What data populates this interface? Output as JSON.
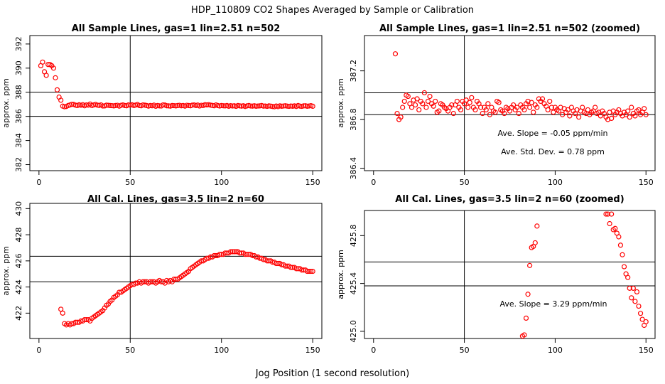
{
  "figure": {
    "title": "HDP_110809  CO2 Shapes Averaged by Sample or Calibration",
    "xlabel": "Jog Position (1 second resolution)"
  },
  "chart_data": [
    {
      "type": "scatter",
      "title": "All Sample Lines, gas=1 lin=2.51 n=502",
      "ylabel": "approx. ppm",
      "color": "#ff0000",
      "xlim": [
        -5,
        155
      ],
      "ylim": [
        381.5,
        392.7
      ],
      "xticks": [
        0,
        50,
        100,
        150
      ],
      "yticks": [
        382,
        384,
        386,
        388,
        390,
        392
      ],
      "hlines": [
        386,
        388
      ],
      "vlines": [
        50
      ],
      "annotations": [],
      "x": [
        1,
        2,
        3,
        4,
        5,
        6,
        7,
        8,
        9,
        10,
        11,
        12,
        13,
        14,
        15,
        16,
        17,
        18,
        19,
        20,
        21,
        22,
        23,
        24,
        25,
        26,
        27,
        28,
        29,
        30,
        31,
        32,
        33,
        34,
        35,
        36,
        37,
        38,
        39,
        40,
        41,
        42,
        43,
        44,
        45,
        46,
        47,
        48,
        49,
        50,
        51,
        52,
        53,
        54,
        55,
        56,
        57,
        58,
        59,
        60,
        61,
        62,
        63,
        64,
        65,
        66,
        67,
        68,
        69,
        70,
        71,
        72,
        73,
        74,
        75,
        76,
        77,
        78,
        79,
        80,
        81,
        82,
        83,
        84,
        85,
        86,
        87,
        88,
        89,
        90,
        91,
        92,
        93,
        94,
        95,
        96,
        97,
        98,
        99,
        100,
        101,
        102,
        103,
        104,
        105,
        106,
        107,
        108,
        109,
        110,
        111,
        112,
        113,
        114,
        115,
        116,
        117,
        118,
        119,
        120,
        121,
        122,
        123,
        124,
        125,
        126,
        127,
        128,
        129,
        130,
        131,
        132,
        133,
        134,
        135,
        136,
        137,
        138,
        139,
        140,
        141,
        142,
        143,
        144,
        145,
        146,
        147,
        148,
        149,
        150
      ],
      "values": [
        390.2,
        390.5,
        389.7,
        389.4,
        390.3,
        390.3,
        390.2,
        390.0,
        389.2,
        388.2,
        387.6,
        387.34,
        386.85,
        386.8,
        386.82,
        386.9,
        386.95,
        387.0,
        386.99,
        386.93,
        386.9,
        386.96,
        386.92,
        386.97,
        386.88,
        386.95,
        386.93,
        387.02,
        386.9,
        386.95,
        386.99,
        386.93,
        386.91,
        386.95,
        386.86,
        386.87,
        386.93,
        386.92,
        386.9,
        386.89,
        386.87,
        386.9,
        386.92,
        386.85,
        386.92,
        386.95,
        386.9,
        386.88,
        386.95,
        386.93,
        386.96,
        386.9,
        386.94,
        386.98,
        386.9,
        386.88,
        386.95,
        386.93,
        386.9,
        386.85,
        386.9,
        386.88,
        386.93,
        386.84,
        386.9,
        386.87,
        386.86,
        386.95,
        386.94,
        386.88,
        386.87,
        386.85,
        386.9,
        386.89,
        386.87,
        386.9,
        386.92,
        386.88,
        386.9,
        386.85,
        386.92,
        386.9,
        386.88,
        386.93,
        386.95,
        386.9,
        386.94,
        386.86,
        386.92,
        386.9,
        386.97,
        386.95,
        386.97,
        386.93,
        386.91,
        386.88,
        386.95,
        386.9,
        386.86,
        386.9,
        386.88,
        386.87,
        386.9,
        386.84,
        386.89,
        386.86,
        386.88,
        386.83,
        386.9,
        386.87,
        386.85,
        386.88,
        386.82,
        386.87,
        386.9,
        386.86,
        386.85,
        386.88,
        386.84,
        386.86,
        386.87,
        386.9,
        386.85,
        386.86,
        386.83,
        386.87,
        386.85,
        386.82,
        386.8,
        386.86,
        386.81,
        386.87,
        386.84,
        386.86,
        386.88,
        386.85,
        386.83,
        386.86,
        386.84,
        386.87,
        386.82,
        386.9,
        386.85,
        386.83,
        386.87,
        386.88,
        386.84,
        386.86,
        386.89,
        386.84
      ]
    },
    {
      "type": "scatter",
      "title": "All Sample Lines, gas=1 lin=2.51 n=502 (zoomed)",
      "ylabel": "approx. ppm",
      "color": "#ff0000",
      "xlim": [
        -5,
        155
      ],
      "ylim": [
        386.38,
        387.49
      ],
      "xticks": [
        0,
        50,
        100,
        150
      ],
      "yticks": [
        386.4,
        386.8,
        387.2
      ],
      "hlines": [
        386.84,
        387.02
      ],
      "vlines": [
        50
      ],
      "annotations": [
        "Ave. Slope =  -0.05  ppm/min",
        "Ave. Std. Dev. =  0.78  ppm"
      ],
      "x": [
        12,
        13,
        14,
        15,
        16,
        17,
        18,
        19,
        20,
        21,
        22,
        23,
        24,
        25,
        26,
        27,
        28,
        29,
        30,
        31,
        32,
        33,
        34,
        35,
        36,
        37,
        38,
        39,
        40,
        41,
        42,
        43,
        44,
        45,
        46,
        47,
        48,
        49,
        50,
        51,
        52,
        53,
        54,
        55,
        56,
        57,
        58,
        59,
        60,
        61,
        62,
        63,
        64,
        65,
        66,
        67,
        68,
        69,
        70,
        71,
        72,
        73,
        74,
        75,
        76,
        77,
        78,
        79,
        80,
        81,
        82,
        83,
        84,
        85,
        86,
        87,
        88,
        89,
        90,
        91,
        92,
        93,
        94,
        95,
        96,
        97,
        98,
        99,
        100,
        101,
        102,
        103,
        104,
        105,
        106,
        107,
        108,
        109,
        110,
        111,
        112,
        113,
        114,
        115,
        116,
        117,
        118,
        119,
        120,
        121,
        122,
        123,
        124,
        125,
        126,
        127,
        128,
        129,
        130,
        131,
        132,
        133,
        134,
        135,
        136,
        137,
        138,
        139,
        140,
        141,
        142,
        143,
        144,
        145,
        146,
        147,
        148,
        149,
        150
      ],
      "values": [
        387.34,
        386.85,
        386.8,
        386.82,
        386.9,
        386.95,
        387.0,
        386.99,
        386.93,
        386.9,
        386.96,
        386.92,
        386.97,
        386.88,
        386.95,
        386.93,
        387.02,
        386.9,
        386.95,
        386.99,
        386.93,
        386.91,
        386.95,
        386.86,
        386.87,
        386.93,
        386.92,
        386.9,
        386.89,
        386.87,
        386.9,
        386.92,
        386.85,
        386.92,
        386.95,
        386.9,
        386.88,
        386.95,
        386.93,
        386.96,
        386.9,
        386.94,
        386.98,
        386.9,
        386.88,
        386.95,
        386.93,
        386.9,
        386.85,
        386.9,
        386.88,
        386.93,
        386.84,
        386.9,
        386.87,
        386.86,
        386.95,
        386.94,
        386.88,
        386.87,
        386.85,
        386.9,
        386.89,
        386.87,
        386.9,
        386.92,
        386.88,
        386.9,
        386.85,
        386.92,
        386.9,
        386.88,
        386.93,
        386.95,
        386.9,
        386.94,
        386.86,
        386.92,
        386.9,
        386.97,
        386.95,
        386.97,
        386.93,
        386.91,
        386.88,
        386.95,
        386.9,
        386.86,
        386.9,
        386.88,
        386.87,
        386.9,
        386.84,
        386.89,
        386.86,
        386.88,
        386.83,
        386.9,
        386.87,
        386.85,
        386.88,
        386.82,
        386.87,
        386.9,
        386.86,
        386.85,
        386.88,
        386.84,
        386.86,
        386.87,
        386.9,
        386.85,
        386.86,
        386.83,
        386.87,
        386.85,
        386.82,
        386.8,
        386.86,
        386.81,
        386.87,
        386.84,
        386.86,
        386.88,
        386.85,
        386.83,
        386.86,
        386.84,
        386.87,
        386.82,
        386.9,
        386.85,
        386.83,
        386.87,
        386.88,
        386.84,
        386.86,
        386.89,
        386.84
      ]
    },
    {
      "type": "scatter",
      "title": "All Cal. Lines, gas=3.5 lin=2 n=60",
      "ylabel": "approx. ppm",
      "color": "#ff0000",
      "xlim": [
        -5,
        155
      ],
      "ylim": [
        420.06,
        430.4
      ],
      "xticks": [
        0,
        50,
        100,
        150
      ],
      "yticks": [
        422,
        424,
        426,
        428,
        430
      ],
      "hlines": [
        424.4,
        426.35
      ],
      "vlines": [
        50
      ],
      "annotations": [],
      "x": [
        12,
        13,
        14,
        15,
        16,
        17,
        18,
        19,
        20,
        21,
        22,
        23,
        24,
        25,
        26,
        27,
        28,
        29,
        30,
        31,
        32,
        33,
        34,
        35,
        36,
        37,
        38,
        39,
        40,
        41,
        42,
        43,
        44,
        45,
        46,
        47,
        48,
        49,
        50,
        51,
        52,
        53,
        54,
        55,
        56,
        57,
        58,
        59,
        60,
        61,
        62,
        63,
        64,
        65,
        66,
        67,
        68,
        69,
        70,
        71,
        72,
        73,
        74,
        75,
        76,
        77,
        78,
        79,
        80,
        81,
        82,
        83,
        84,
        85,
        86,
        87,
        88,
        89,
        90,
        91,
        92,
        93,
        94,
        95,
        96,
        97,
        98,
        99,
        100,
        101,
        102,
        103,
        104,
        105,
        106,
        107,
        108,
        109,
        110,
        111,
        112,
        113,
        114,
        115,
        116,
        117,
        118,
        119,
        120,
        121,
        122,
        123,
        124,
        125,
        126,
        127,
        128,
        129,
        130,
        131,
        132,
        133,
        134,
        135,
        136,
        137,
        138,
        139,
        140,
        141,
        142,
        143,
        144,
        145,
        146,
        147,
        148,
        149,
        150
      ],
      "values": [
        422.3,
        422.0,
        421.2,
        421.1,
        421.2,
        421.1,
        421.2,
        421.2,
        421.3,
        421.3,
        421.3,
        421.4,
        421.4,
        421.5,
        421.5,
        421.5,
        421.4,
        421.6,
        421.7,
        421.8,
        421.9,
        422.0,
        422.1,
        422.2,
        422.4,
        422.6,
        422.7,
        422.9,
        423.0,
        423.2,
        423.3,
        423.4,
        423.6,
        423.6,
        423.7,
        423.8,
        423.9,
        424.0,
        424.1,
        424.2,
        424.2,
        424.3,
        424.3,
        424.4,
        424.3,
        424.4,
        424.4,
        424.4,
        424.3,
        424.4,
        424.4,
        424.4,
        424.3,
        424.4,
        424.5,
        424.4,
        424.4,
        424.3,
        424.5,
        424.4,
        424.5,
        424.4,
        424.6,
        424.6,
        424.6,
        424.7,
        424.8,
        424.9,
        425.0,
        425.1,
        425.2,
        425.4,
        425.5,
        425.6,
        425.7,
        425.8,
        425.9,
        426.0,
        426.0,
        426.1,
        426.2,
        426.2,
        426.3,
        426.3,
        426.4,
        426.4,
        426.4,
        426.5,
        426.5,
        426.5,
        426.6,
        426.6,
        426.6,
        426.7,
        426.7,
        426.7,
        426.7,
        426.7,
        426.6,
        426.6,
        426.6,
        426.5,
        426.5,
        426.5,
        426.5,
        426.4,
        426.4,
        426.3,
        426.3,
        426.2,
        426.2,
        426.1,
        426.1,
        426.0,
        426.0,
        426.0,
        425.9,
        425.9,
        425.8,
        425.8,
        425.8,
        425.7,
        425.7,
        425.6,
        425.6,
        425.6,
        425.5,
        425.5,
        425.5,
        425.4,
        425.4,
        425.4,
        425.3,
        425.3,
        425.3,
        425.2,
        425.2,
        425.2,
        425.2
      ]
    },
    {
      "type": "scatter",
      "title": "All Cal. Lines, gas=3.5 lin=2 n=60 (zoomed)",
      "ylabel": "approx. ppm",
      "color": "#ff0000",
      "xlim": [
        -5,
        155
      ],
      "ylim": [
        424.94,
        426.01
      ],
      "xticks": [
        0,
        50,
        100,
        150
      ],
      "yticks": [
        {
          "value": 425,
          "label": "425.0"
        },
        425.4,
        425.8
      ],
      "hlines": [
        425.38,
        425.58
      ],
      "vlines": [
        50
      ],
      "annotations": [
        "Ave. Slope =  3.29  ppm/min"
      ],
      "x": [
        82,
        83,
        84,
        85,
        86,
        87,
        88,
        89,
        90,
        128,
        129,
        130,
        131,
        132,
        133,
        134,
        135,
        136,
        137,
        138,
        139,
        140,
        141,
        142,
        143,
        144,
        145,
        146,
        147,
        148,
        149,
        150
      ],
      "values": [
        424.96,
        424.97,
        425.11,
        425.31,
        425.55,
        425.7,
        425.71,
        425.74,
        425.88,
        425.98,
        425.98,
        425.9,
        425.98,
        425.85,
        425.86,
        425.82,
        425.79,
        425.72,
        425.64,
        425.54,
        425.48,
        425.45,
        425.36,
        425.28,
        425.36,
        425.25,
        425.33,
        425.21,
        425.15,
        425.1,
        425.05,
        425.08
      ]
    }
  ]
}
